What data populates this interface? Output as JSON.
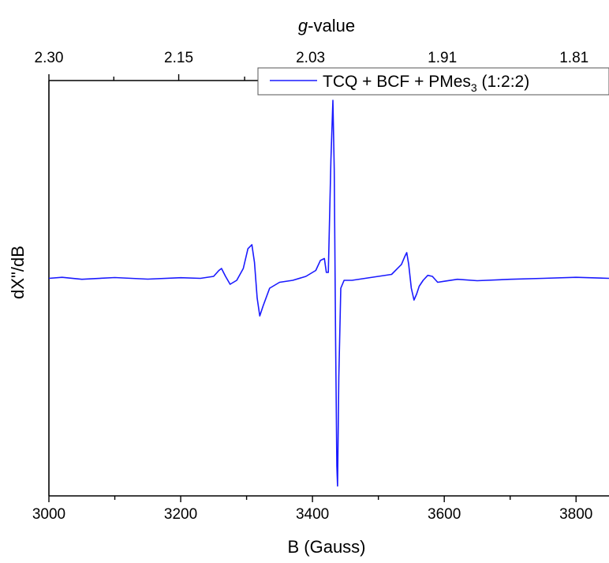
{
  "chart_data": {
    "type": "line",
    "x_axis": {
      "label": "B (Gauss)",
      "range": [
        3000,
        3850
      ],
      "ticks": [
        3000,
        3200,
        3400,
        3600,
        3800
      ],
      "tick_labels": [
        "3000",
        "3200",
        "3400",
        "3600",
        "3800"
      ]
    },
    "top_axis": {
      "label_italic": "g",
      "label_rest": "-value",
      "tick_labels": [
        "2.30",
        "2.15",
        "2.03",
        "1.91",
        "1.81"
      ],
      "tick_positions_gauss": [
        3000,
        3197,
        3397,
        3597,
        3797
      ]
    },
    "y_axis": {
      "label": "dX\"/dB",
      "range": [
        -1.1,
        1.0
      ],
      "ticks_shown": false
    },
    "legend": {
      "placement": "top-right",
      "label_main": "TCQ + BCF + PMes",
      "label_sub": "3",
      "label_tail": " (1:2:2)"
    },
    "series": [
      {
        "color": "#1a1aff",
        "x": [
          3000,
          3020,
          3050,
          3100,
          3150,
          3200,
          3230,
          3250,
          3258,
          3262,
          3268,
          3275,
          3285,
          3295,
          3302,
          3308,
          3312,
          3316,
          3320,
          3325,
          3335,
          3350,
          3370,
          3390,
          3405,
          3412,
          3418,
          3421,
          3424,
          3428,
          3431,
          3433,
          3435,
          3437,
          3438,
          3440,
          3443,
          3448,
          3460,
          3480,
          3500,
          3520,
          3535,
          3540,
          3543,
          3546,
          3550,
          3554,
          3558,
          3562,
          3568,
          3575,
          3582,
          3590,
          3600,
          3620,
          3650,
          3700,
          3750,
          3800,
          3850
        ],
        "y": [
          0,
          0.005,
          -0.005,
          0.004,
          -0.004,
          0.003,
          0,
          0.01,
          0.04,
          0.05,
          0.01,
          -0.03,
          -0.01,
          0.05,
          0.15,
          0.17,
          0.08,
          -0.1,
          -0.19,
          -0.14,
          -0.05,
          -0.02,
          -0.01,
          0.01,
          0.04,
          0.09,
          0.1,
          0.03,
          0.03,
          0.6,
          0.9,
          0.55,
          -0.3,
          -0.95,
          -1.05,
          -0.5,
          -0.05,
          -0.01,
          -0.01,
          0.0,
          0.01,
          0.02,
          0.07,
          0.11,
          0.13,
          0.07,
          -0.05,
          -0.11,
          -0.08,
          -0.04,
          -0.01,
          0.015,
          0.01,
          -0.02,
          -0.015,
          -0.005,
          -0.012,
          -0.005,
          0.0,
          0.005,
          0.0
        ]
      }
    ]
  }
}
